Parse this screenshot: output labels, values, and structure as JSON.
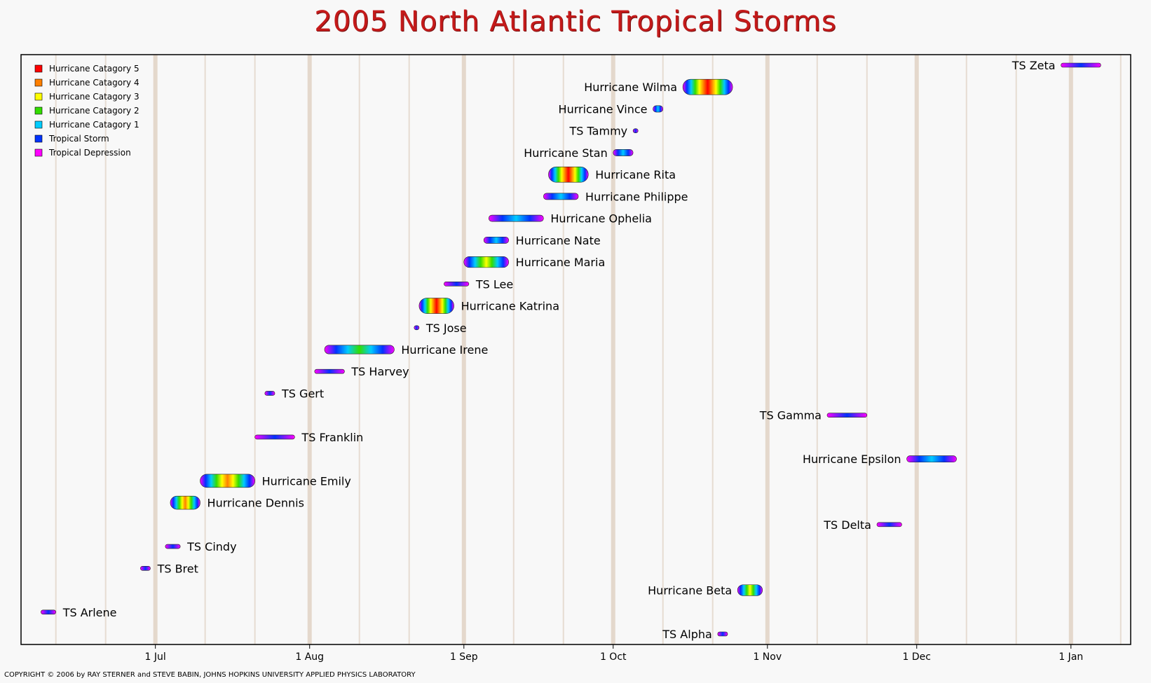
{
  "chart_data": {
    "type": "timeline",
    "title": "2005 North Atlantic Tropical Storms",
    "copyright": "COPYRIGHT © 2006 by RAY STERNER and STEVE BABIN, JOHNS HOPKINS UNIVERSITY APPLIED PHYSICS LABORATORY",
    "x_axis": {
      "unit": "date",
      "range": [
        "2005-06-04",
        "2006-01-13"
      ],
      "ticks": [
        {
          "date": "2005-07-01",
          "label": "1 Jul"
        },
        {
          "date": "2005-08-01",
          "label": "1 Aug"
        },
        {
          "date": "2005-09-01",
          "label": "1 Sep"
        },
        {
          "date": "2005-10-01",
          "label": "1 Oct"
        },
        {
          "date": "2005-11-01",
          "label": "1 Nov"
        },
        {
          "date": "2005-12-01",
          "label": "1 Dec"
        },
        {
          "date": "2006-01-01",
          "label": "1 Jan"
        }
      ],
      "grid": true
    },
    "legend": {
      "position": "top-left",
      "items": [
        {
          "label": "Hurricane Catagory 5",
          "color": "#ff0000"
        },
        {
          "label": "Hurricane Catagory 4",
          "color": "#ff7f00"
        },
        {
          "label": "Hurricane Catagory 3",
          "color": "#ffff00"
        },
        {
          "label": "Hurricane Catagory 2",
          "color": "#33dd00"
        },
        {
          "label": "Hurricane Catagory 1",
          "color": "#00ccff"
        },
        {
          "label": "Tropical Storm",
          "color": "#0033ff"
        },
        {
          "label": "Tropical Depression",
          "color": "#ff00ff"
        }
      ]
    },
    "storms": [
      {
        "name": "TS Arlene",
        "start": "2005-06-08",
        "end": "2005-06-11",
        "peak": "Tropical Storm",
        "label_side": "right"
      },
      {
        "name": "TS Bret",
        "start": "2005-06-28",
        "end": "2005-06-30",
        "peak": "Tropical Storm",
        "label_side": "right"
      },
      {
        "name": "TS Cindy",
        "start": "2005-07-03",
        "end": "2005-07-06",
        "peak": "Tropical Storm",
        "label_side": "right"
      },
      {
        "name": "Hurricane Dennis",
        "start": "2005-07-04",
        "end": "2005-07-10",
        "peak": "Hurricane Catagory 4",
        "label_side": "right"
      },
      {
        "name": "Hurricane Emily",
        "start": "2005-07-10",
        "end": "2005-07-21",
        "peak": "Hurricane Catagory 4",
        "label_side": "right"
      },
      {
        "name": "TS Franklin",
        "start": "2005-07-21",
        "end": "2005-07-29",
        "peak": "Tropical Storm",
        "label_side": "right"
      },
      {
        "name": "TS Gert",
        "start": "2005-07-23",
        "end": "2005-07-25",
        "peak": "Tropical Storm",
        "label_side": "right"
      },
      {
        "name": "TS Harvey",
        "start": "2005-08-02",
        "end": "2005-08-08",
        "peak": "Tropical Storm",
        "label_side": "right"
      },
      {
        "name": "Hurricane Irene",
        "start": "2005-08-04",
        "end": "2005-08-18",
        "peak": "Hurricane Catagory 2",
        "label_side": "right"
      },
      {
        "name": "TS Jose",
        "start": "2005-08-22",
        "end": "2005-08-23",
        "peak": "Tropical Storm",
        "label_side": "right"
      },
      {
        "name": "Hurricane Katrina",
        "start": "2005-08-23",
        "end": "2005-08-30",
        "peak": "Hurricane Catagory 5",
        "label_side": "right"
      },
      {
        "name": "TS Lee",
        "start": "2005-08-28",
        "end": "2005-09-02",
        "peak": "Tropical Storm",
        "label_side": "right"
      },
      {
        "name": "Hurricane Maria",
        "start": "2005-09-01",
        "end": "2005-09-10",
        "peak": "Hurricane Catagory 3",
        "label_side": "right"
      },
      {
        "name": "Hurricane Nate",
        "start": "2005-09-05",
        "end": "2005-09-10",
        "peak": "Hurricane Catagory 1",
        "label_side": "right"
      },
      {
        "name": "Hurricane Ophelia",
        "start": "2005-09-06",
        "end": "2005-09-17",
        "peak": "Hurricane Catagory 1",
        "label_side": "right"
      },
      {
        "name": "Hurricane Philippe",
        "start": "2005-09-17",
        "end": "2005-09-24",
        "peak": "Hurricane Catagory 1",
        "label_side": "right"
      },
      {
        "name": "Hurricane Rita",
        "start": "2005-09-18",
        "end": "2005-09-26",
        "peak": "Hurricane Catagory 5",
        "label_side": "right"
      },
      {
        "name": "Hurricane Stan",
        "start": "2005-10-01",
        "end": "2005-10-05",
        "peak": "Hurricane Catagory 1",
        "label_side": "left"
      },
      {
        "name": "TS Tammy",
        "start": "2005-10-05",
        "end": "2005-10-06",
        "peak": "Tropical Storm",
        "label_side": "left"
      },
      {
        "name": "Hurricane Vince",
        "start": "2005-10-09",
        "end": "2005-10-11",
        "peak": "Hurricane Catagory 1",
        "label_side": "left"
      },
      {
        "name": "Hurricane Wilma",
        "start": "2005-10-15",
        "end": "2005-10-25",
        "peak": "Hurricane Catagory 5",
        "label_side": "left"
      },
      {
        "name": "TS Alpha",
        "start": "2005-10-22",
        "end": "2005-10-24",
        "peak": "Tropical Storm",
        "label_side": "left"
      },
      {
        "name": "Hurricane Beta",
        "start": "2005-10-26",
        "end": "2005-10-31",
        "peak": "Hurricane Catagory 3",
        "label_side": "left"
      },
      {
        "name": "TS Gamma",
        "start": "2005-11-13",
        "end": "2005-11-21",
        "peak": "Tropical Storm",
        "label_side": "left"
      },
      {
        "name": "TS Delta",
        "start": "2005-11-23",
        "end": "2005-11-28",
        "peak": "Tropical Storm",
        "label_side": "left"
      },
      {
        "name": "Hurricane Epsilon",
        "start": "2005-11-29",
        "end": "2005-12-09",
        "peak": "Hurricane Catagory 1",
        "label_side": "left"
      },
      {
        "name": "TS Zeta",
        "start": "2005-12-30",
        "end": "2006-01-07",
        "peak": "Tropical Storm",
        "label_side": "left"
      }
    ]
  }
}
